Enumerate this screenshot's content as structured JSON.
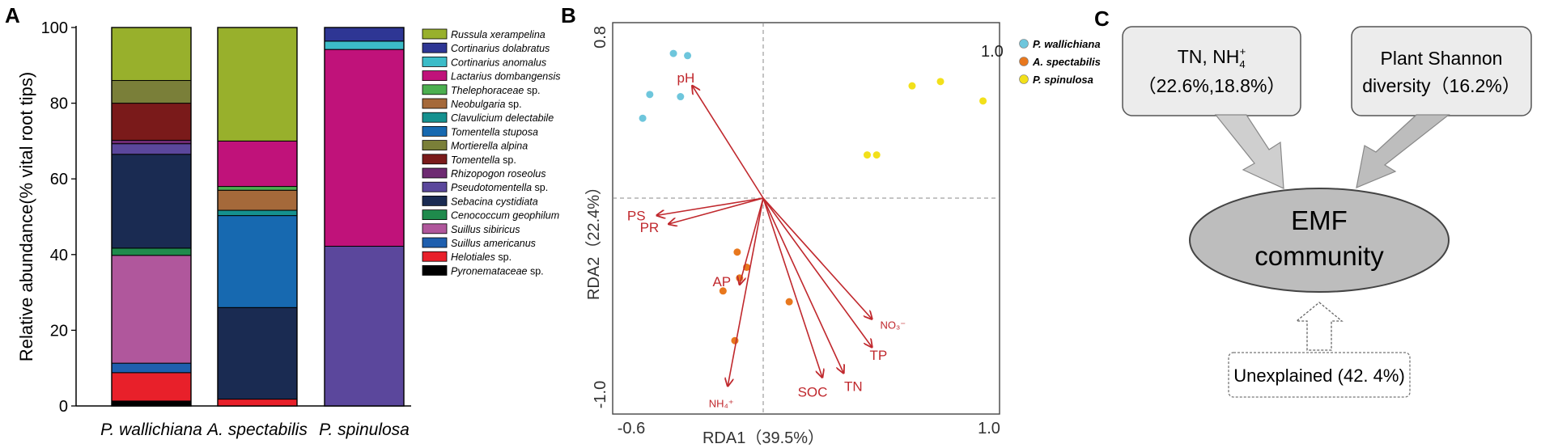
{
  "chart_data": [
    {
      "type": "bar",
      "panel_label": "A",
      "ylabel": "Relative abundance(% vital root tips)",
      "ylim": [
        0,
        100
      ],
      "yticks": [
        "0",
        "20",
        "40",
        "60",
        "80",
        "100"
      ],
      "categories": [
        "P. wallichiana",
        "A. spectabilis",
        "P. spinulosa"
      ],
      "series": [
        {
          "name": "Pyronemataceae sp.",
          "color": "#000000",
          "values": [
            1.3,
            0.0,
            0.0
          ]
        },
        {
          "name": "Helotiales sp.",
          "color": "#e8202a",
          "values": [
            7.5,
            1.8,
            0.0
          ]
        },
        {
          "name": "Suillus americanus",
          "color": "#1f5fae",
          "values": [
            2.5,
            0.0,
            0.0
          ]
        },
        {
          "name": "Suillus sibiricus",
          "color": "#b0579c",
          "values": [
            28.5,
            0.0,
            0.0
          ]
        },
        {
          "name": "Cenococcum geophilum",
          "color": "#1f8a4c",
          "values": [
            1.9,
            0.0,
            0.0
          ]
        },
        {
          "name": "Sebacina cystidiata",
          "color": "#1a2b52",
          "values": [
            24.8,
            24.2,
            0.0
          ]
        },
        {
          "name": "Pseudotomentella sp.",
          "color": "#5b479c",
          "values": [
            2.8,
            0.0,
            42.2
          ]
        },
        {
          "name": "Rhizopogon roseolus",
          "color": "#6e2a72",
          "values": [
            0.9,
            0.0,
            0.0
          ]
        },
        {
          "name": "Tomentella sp.",
          "color": "#7a1a1a",
          "values": [
            9.8,
            0.0,
            0.0
          ]
        },
        {
          "name": "Mortierella alpina",
          "color": "#7a7f39",
          "values": [
            6.0,
            0.0,
            0.0
          ]
        },
        {
          "name": "Tomentella stuposa",
          "color": "#1769b0",
          "values": [
            0.0,
            24.3,
            0.0
          ]
        },
        {
          "name": "Clavulicium delectabile",
          "color": "#15918f",
          "values": [
            0.0,
            1.4,
            0.0
          ]
        },
        {
          "name": "Neobulgaria sp.",
          "color": "#a5693a",
          "values": [
            0.0,
            5.3,
            0.0
          ]
        },
        {
          "name": "Thelephoraceae sp.",
          "color": "#4caf50",
          "values": [
            0.0,
            1.0,
            0.0
          ]
        },
        {
          "name": "Lactarius dombangensis",
          "color": "#c0127a",
          "values": [
            0.0,
            12.0,
            52.0
          ]
        },
        {
          "name": "Cortinarius anomalus",
          "color": "#3cbcc8",
          "values": [
            0.0,
            0.0,
            2.2
          ]
        },
        {
          "name": "Cortinarius dolabratus",
          "color": "#2e3694",
          "values": [
            0.0,
            0.0,
            3.6
          ]
        },
        {
          "name": "Russula xerampelina",
          "color": "#98b02c",
          "values": [
            14.0,
            30.0,
            0.0
          ]
        }
      ],
      "legend_order": [
        "Russula xerampelina",
        "Cortinarius dolabratus",
        "Cortinarius anomalus",
        "Lactarius dombangensis",
        "Thelephoraceae sp.",
        "Neobulgaria sp.",
        "Clavulicium delectabile",
        "Tomentella stuposa",
        "Mortierella alpina",
        "Tomentella sp.",
        "Rhizopogon roseolus",
        "Pseudotomentella sp.",
        "Sebacina cystidiata",
        "Cenococcum geophilum",
        "Suillus sibiricus",
        "Suillus americanus",
        "Helotiales sp.",
        "Pyronemataceae sp."
      ],
      "legend_italic": [
        true,
        true,
        true,
        true,
        false,
        false,
        true,
        true,
        true,
        false,
        true,
        false,
        true,
        true,
        true,
        true,
        false,
        false
      ]
    },
    {
      "type": "scatter",
      "panel_label": "B",
      "xlabel": "RDA1（39.5%）",
      "ylabel": "RDA2（22.4%）",
      "xlim": [
        -0.6,
        1.0
      ],
      "ylim": [
        -1.0,
        0.8
      ],
      "corner_label": "1.0",
      "xtick_labels": [
        "-0.6",
        "1.0"
      ],
      "ytick_labels": [
        "0.8",
        "-1.0"
      ],
      "groups": [
        {
          "name": "P. wallichiana",
          "color": "#6ec6dc",
          "points": [
            [
              -0.38,
              0.67
            ],
            [
              -0.32,
              0.66
            ],
            [
              -0.48,
              0.48
            ],
            [
              -0.35,
              0.47
            ],
            [
              -0.51,
              0.37
            ]
          ]
        },
        {
          "name": "A. spectabilis",
          "color": "#e8781e",
          "points": [
            [
              -0.11,
              -0.25
            ],
            [
              -0.07,
              -0.32
            ],
            [
              -0.17,
              -0.43
            ],
            [
              -0.1,
              -0.37
            ],
            [
              0.11,
              -0.48
            ],
            [
              -0.12,
              -0.66
            ]
          ]
        },
        {
          "name": "P. spinulosa",
          "color": "#f2e01a",
          "points": [
            [
              0.44,
              0.2
            ],
            [
              0.48,
              0.2
            ],
            [
              0.63,
              0.52
            ],
            [
              0.75,
              0.54
            ],
            [
              0.93,
              0.45
            ]
          ]
        }
      ],
      "vectors": [
        {
          "name": "pH",
          "x": -0.3,
          "y": 0.52,
          "label": "pH"
        },
        {
          "name": "PS",
          "x": -0.45,
          "y": -0.08,
          "label": "PS"
        },
        {
          "name": "PR",
          "x": -0.4,
          "y": -0.12,
          "label": "PR"
        },
        {
          "name": "AP",
          "x": -0.1,
          "y": -0.4,
          "label": "AP"
        },
        {
          "name": "NH4+",
          "x": -0.15,
          "y": -0.87,
          "label": "NH₄⁺"
        },
        {
          "name": "SOC",
          "x": 0.25,
          "y": -0.83,
          "label": "SOC"
        },
        {
          "name": "TN",
          "x": 0.34,
          "y": -0.81,
          "label": "TN"
        },
        {
          "name": "TP",
          "x": 0.46,
          "y": -0.69,
          "label": "TP"
        },
        {
          "name": "NO3-",
          "x": 0.46,
          "y": -0.56,
          "label": "NO₃⁻"
        }
      ]
    }
  ],
  "diagram": {
    "panel_label": "C",
    "box_left_line1": "TN, NH",
    "box_left_sub": "4",
    "box_left_sup": "+",
    "box_left_line2": "（22.6%,18.8%）",
    "box_right_line1": "Plant Shannon",
    "box_right_line2": "diversity（16.2%）",
    "ellipse_line1": "EMF",
    "ellipse_line2": "community",
    "unexplained": "Unexplained (42. 4%)"
  },
  "colors": {
    "arrow_red": "#c0282d",
    "box_fill": "#ececec",
    "ellipse_fill": "#bdbdbd"
  }
}
